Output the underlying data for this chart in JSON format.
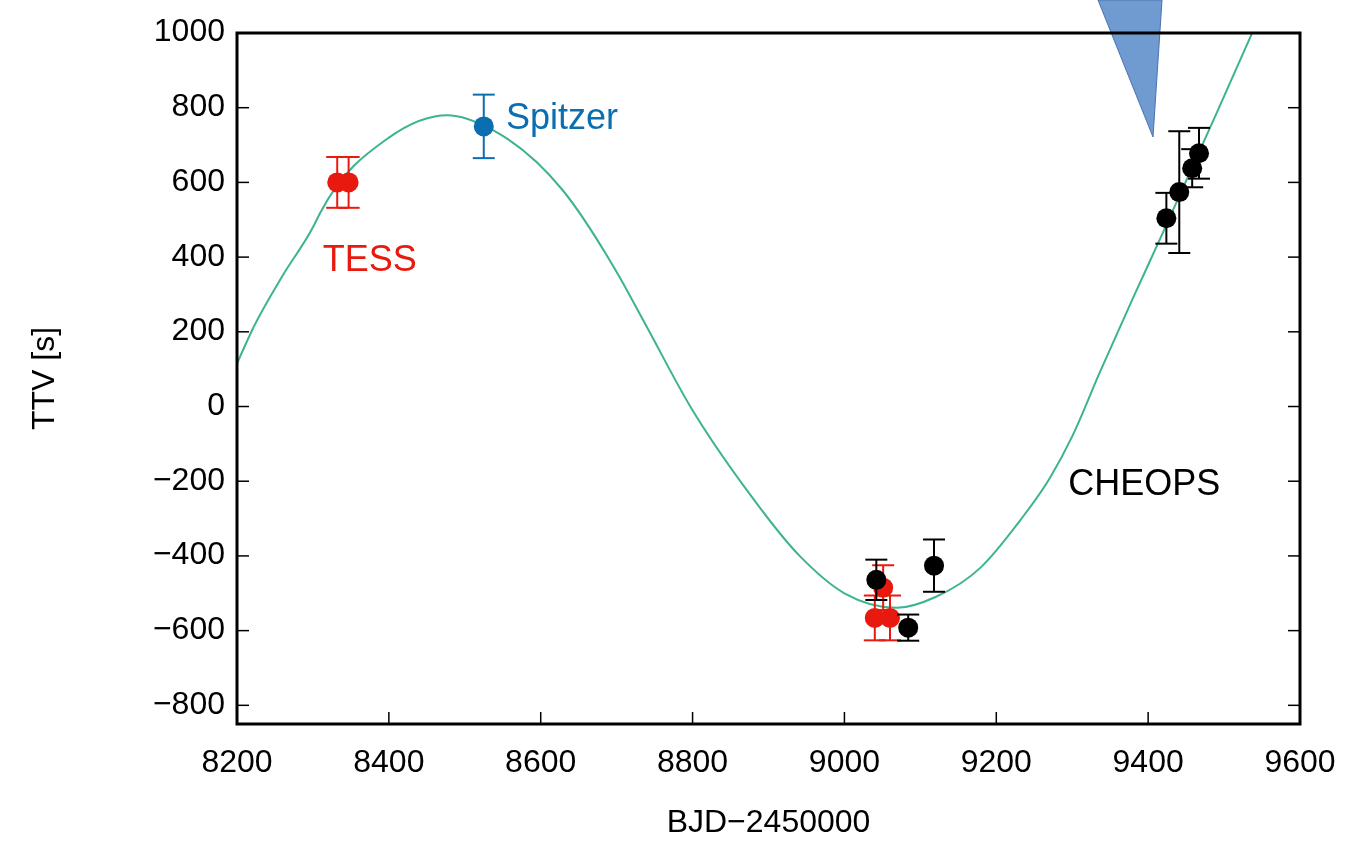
{
  "chart_data": {
    "type": "scatter",
    "xlabel": "BJD−2450000",
    "ylabel": "TTV [s]",
    "xlim": [
      8200,
      9600
    ],
    "xticks": [
      8200,
      8400,
      8600,
      8800,
      9000,
      9200,
      9400,
      9600
    ],
    "ylim": [
      -850,
      1000
    ],
    "yticks": [
      {
        "value": -800,
        "label": "−800"
      },
      {
        "value": -600,
        "label": "−600"
      },
      {
        "value": -400,
        "label": "−400"
      },
      {
        "value": -200,
        "label": "−200"
      },
      0,
      200,
      400,
      600,
      800,
      1000
    ],
    "grid": false,
    "legend": "right",
    "marker": "circle",
    "series": [
      {
        "type": "line",
        "marker": "none",
        "color": "#3db38f",
        "x": [
          8200,
          8221,
          8260,
          8300,
          8310,
          8400,
          8477,
          8537,
          8629,
          8700,
          8740,
          8797,
          8870,
          8941,
          9000,
          9069,
          9120,
          9180,
          9231,
          9271,
          9300,
          9336,
          9380,
          9416,
          9490,
          9537
        ],
        "values": [
          115,
          209,
          350,
          480,
          520,
          720,
          780,
          740,
          579,
          360,
          212,
          0,
          -220,
          -400,
          -500,
          -539,
          -510,
          -430,
          -306,
          -190,
          -80,
          90,
          290,
          450,
          785,
          1000
        ]
      },
      {
        "name": "TESS",
        "color": "#e8190e",
        "x": [
          8332,
          8347,
          9051,
          9040,
          9060
        ],
        "values": [
          600,
          600,
          -485,
          -566,
          -566
        ],
        "errors": [
          68,
          68,
          60,
          60,
          60
        ]
      },
      {
        "name": "Spitzer",
        "color": "#0b6eb0",
        "x": [
          8525
        ],
        "values": [
          750
        ],
        "errors": [
          85
        ]
      },
      {
        "name": "CHEOPS",
        "color": "#000000",
        "x": [
          9042,
          9084,
          9118,
          9424,
          9441,
          9458,
          9467
        ],
        "values": [
          -464,
          -592,
          -426,
          504,
          574,
          638,
          678
        ],
        "errors": [
          54,
          35,
          70,
          68,
          163,
          51,
          68
        ]
      }
    ]
  }
}
